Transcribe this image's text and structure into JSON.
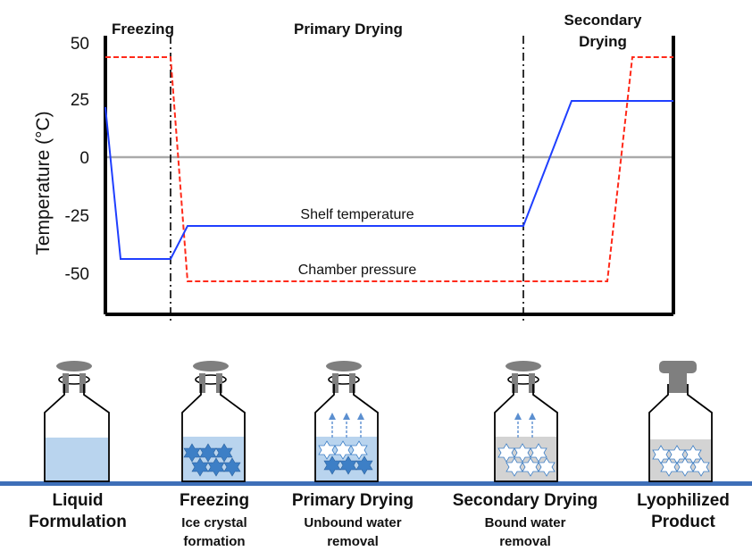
{
  "phases": {
    "freezing": "Freezing",
    "primary_drying": "Primary Drying",
    "secondary_drying_line1": "Secondary",
    "secondary_drying_line2": "Drying"
  },
  "axis": {
    "ylabel": "Temperature (°C)",
    "ticks": [
      "50",
      "25",
      "0",
      "-25",
      "-50"
    ]
  },
  "series_labels": {
    "shelf": "Shelf temperature",
    "chamber": "Chamber pressure"
  },
  "colors": {
    "shelf": "#1f3fff",
    "chamber": "#ff2a1a",
    "zero_line": "#aaaaaa",
    "liquid": "#b9d4ee",
    "crystal": "#3d7fc6",
    "cap": "#7f7f7f",
    "bench": "#3e6fb8"
  },
  "vials": [
    {
      "title": "Liquid",
      "title2": "Formulation",
      "sub1": "",
      "sub2": ""
    },
    {
      "title": "Freezing",
      "title2": "",
      "sub1": "Ice crystal",
      "sub2": "formation"
    },
    {
      "title": "Primary Drying",
      "title2": "",
      "sub1": "Unbound water",
      "sub2": "removal"
    },
    {
      "title": "Secondary Drying",
      "title2": "",
      "sub1": "Bound water",
      "sub2": "removal"
    },
    {
      "title": "Lyophilized",
      "title2": "Product",
      "sub1": "",
      "sub2": ""
    }
  ]
}
